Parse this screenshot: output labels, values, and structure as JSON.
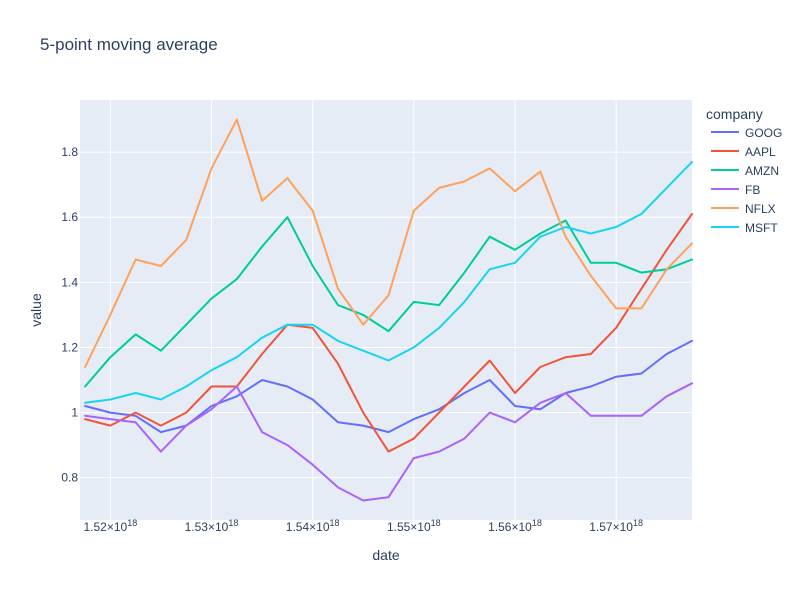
{
  "chart_data": {
    "type": "line",
    "title": "5-point moving average",
    "xlabel": "date",
    "ylabel": "value",
    "legend_title": "company",
    "legend_position": "right",
    "grid": true,
    "xlim": [
      1517000000,
      1577500000
    ],
    "ylim": [
      0.67,
      1.96
    ],
    "x_unit_label": "×10^18 (epoch nanoseconds)",
    "xticks": [
      {
        "value": 1520000000,
        "mantissa": "1.52",
        "exp": "18"
      },
      {
        "value": 1530000000,
        "mantissa": "1.53",
        "exp": "18"
      },
      {
        "value": 1540000000,
        "mantissa": "1.54",
        "exp": "18"
      },
      {
        "value": 1550000000,
        "mantissa": "1.55",
        "exp": "18"
      },
      {
        "value": 1560000000,
        "mantissa": "1.56",
        "exp": "18"
      },
      {
        "value": 1570000000,
        "mantissa": "1.57",
        "exp": "18"
      }
    ],
    "yticks": [
      {
        "value": 0.8,
        "label": "0.8"
      },
      {
        "value": 1.0,
        "label": "1"
      },
      {
        "value": 1.2,
        "label": "1.2"
      },
      {
        "value": 1.4,
        "label": "1.4"
      },
      {
        "value": 1.6,
        "label": "1.6"
      },
      {
        "value": 1.8,
        "label": "1.8"
      }
    ],
    "x": [
      1517500000,
      1520000000,
      1522500000,
      1525000000,
      1527500000,
      1530000000,
      1532500000,
      1535000000,
      1537500000,
      1540000000,
      1542500000,
      1545000000,
      1547500000,
      1550000000,
      1552500000,
      1555000000,
      1557500000,
      1560000000,
      1562500000,
      1565000000,
      1567500000,
      1570000000,
      1572500000,
      1575000000,
      1577500000
    ],
    "series": [
      {
        "name": "GOOG",
        "color": "#636efa",
        "values": [
          1.02,
          1.0,
          0.99,
          0.94,
          0.96,
          1.02,
          1.05,
          1.1,
          1.08,
          1.04,
          0.97,
          0.96,
          0.94,
          0.98,
          1.01,
          1.06,
          1.1,
          1.02,
          1.01,
          1.06,
          1.08,
          1.11,
          1.12,
          1.18,
          1.22
        ]
      },
      {
        "name": "AAPL",
        "color": "#EF553B",
        "values": [
          0.98,
          0.96,
          1.0,
          0.96,
          1.0,
          1.08,
          1.08,
          1.18,
          1.27,
          1.26,
          1.15,
          1.0,
          0.88,
          0.92,
          1.0,
          1.08,
          1.16,
          1.06,
          1.14,
          1.17,
          1.18,
          1.26,
          1.38,
          1.5,
          1.61
        ]
      },
      {
        "name": "AMZN",
        "color": "#00cc96",
        "values": [
          1.08,
          1.17,
          1.24,
          1.19,
          1.27,
          1.35,
          1.41,
          1.51,
          1.6,
          1.45,
          1.33,
          1.3,
          1.25,
          1.34,
          1.33,
          1.43,
          1.54,
          1.5,
          1.55,
          1.59,
          1.46,
          1.46,
          1.43,
          1.44,
          1.47
        ]
      },
      {
        "name": "FB",
        "color": "#ab63fa",
        "values": [
          0.99,
          0.98,
          0.97,
          0.88,
          0.96,
          1.01,
          1.08,
          0.94,
          0.9,
          0.84,
          0.77,
          0.73,
          0.74,
          0.86,
          0.88,
          0.92,
          1.0,
          0.97,
          1.03,
          1.06,
          0.99,
          0.99,
          0.99,
          1.05,
          1.09
        ]
      },
      {
        "name": "NFLX",
        "color": "#FFA15A",
        "values": [
          1.14,
          1.3,
          1.47,
          1.45,
          1.53,
          1.75,
          1.9,
          1.65,
          1.72,
          1.62,
          1.38,
          1.27,
          1.36,
          1.62,
          1.69,
          1.71,
          1.75,
          1.68,
          1.74,
          1.54,
          1.42,
          1.32,
          1.32,
          1.44,
          1.52
        ]
      },
      {
        "name": "MSFT",
        "color": "#19d3f3",
        "values": [
          1.03,
          1.04,
          1.06,
          1.04,
          1.08,
          1.13,
          1.17,
          1.23,
          1.27,
          1.27,
          1.22,
          1.19,
          1.16,
          1.2,
          1.26,
          1.34,
          1.44,
          1.46,
          1.54,
          1.57,
          1.55,
          1.57,
          1.61,
          1.69,
          1.77
        ]
      }
    ]
  }
}
